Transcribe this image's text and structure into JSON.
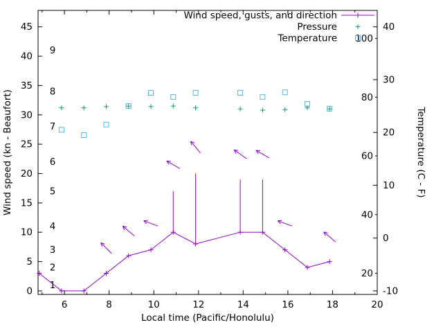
{
  "page": {
    "background": "#ffffff"
  },
  "legend": {
    "items": [
      {
        "label": "Wind speed, gusts, and direction",
        "series": "wind",
        "marker": "line-plus"
      },
      {
        "label": "Pressure",
        "series": "pressure",
        "marker": "plus"
      },
      {
        "label": "Temperature",
        "series": "temperature",
        "marker": "square"
      }
    ]
  },
  "chart_data": {
    "type": "line",
    "title": "",
    "xlabel": "Local time (Pacific/Honolulu)",
    "ylabel_left": "Wind speed (kn - Beaufort)",
    "ylabel_right": "Temperature (C - F)",
    "x_axis": {
      "lim": [
        4.82,
        20
      ],
      "major_ticks": [
        6,
        8,
        10,
        12,
        14,
        16,
        18,
        20
      ],
      "minor_ticks": [
        5,
        7,
        9,
        11,
        13,
        15,
        17,
        19
      ]
    },
    "y_left": {
      "lim": [
        -0.6,
        47.8
      ],
      "ticks": [
        0,
        5,
        10,
        15,
        20,
        25,
        30,
        35,
        40,
        45
      ],
      "beaufort_labels": [
        {
          "b": "1",
          "kn": 1
        },
        {
          "b": "2",
          "kn": 4
        },
        {
          "b": "3",
          "kn": 7
        },
        {
          "b": "4",
          "kn": 11
        },
        {
          "b": "5",
          "kn": 17
        },
        {
          "b": "6",
          "kn": 22
        },
        {
          "b": "7",
          "kn": 28
        },
        {
          "b": "8",
          "kn": 34
        },
        {
          "b": "9",
          "kn": 41
        }
      ]
    },
    "y_right": {
      "c_at_kn0": -10,
      "c_per_kn": 1.11111,
      "c_ticks": [
        -10,
        0,
        10,
        20,
        30,
        40
      ],
      "f_ticks": [
        {
          "f": "20",
          "c": -6.67
        },
        {
          "f": "40",
          "c": 4.44
        },
        {
          "f": "60",
          "c": 15.56
        },
        {
          "f": "80",
          "c": 26.67
        },
        {
          "f": "100",
          "c": 37.78
        }
      ]
    },
    "series": {
      "wind": {
        "color": "#9400d3",
        "x": [
          4.87,
          5.87,
          6.87,
          7.87,
          8.87,
          9.87,
          10.87,
          11.87,
          13.87,
          14.87,
          15.87,
          16.87,
          17.87
        ],
        "y": [
          3,
          0,
          0,
          3,
          6,
          7,
          10,
          8,
          10,
          10,
          7,
          4,
          5
        ],
        "gust": [
          null,
          null,
          null,
          null,
          null,
          null,
          17,
          20,
          19,
          19,
          null,
          null,
          null
        ],
        "arrows": [
          {
            "x": 7.87,
            "kn": 7.3,
            "angle": 135
          },
          {
            "x": 8.87,
            "kn": 10.2,
            "angle": 140
          },
          {
            "x": 9.87,
            "kn": 11.5,
            "angle": 160
          },
          {
            "x": 10.87,
            "kn": 21.5,
            "angle": 150
          },
          {
            "x": 11.87,
            "kn": 24.5,
            "angle": 130
          },
          {
            "x": 13.87,
            "kn": 23.3,
            "angle": 145
          },
          {
            "x": 14.87,
            "kn": 23.3,
            "angle": 150
          },
          {
            "x": 15.87,
            "kn": 11.5,
            "angle": 160
          },
          {
            "x": 17.87,
            "kn": 9.2,
            "angle": 140
          }
        ]
      },
      "pressure": {
        "color": "#009e73",
        "x": [
          5.87,
          6.87,
          7.87,
          8.87,
          9.87,
          10.87,
          11.87,
          13.87,
          14.87,
          15.87,
          16.87,
          17.87
        ],
        "y": [
          31.2,
          31.2,
          31.4,
          31.5,
          31.4,
          31.5,
          31.2,
          31.0,
          30.8,
          30.9,
          31.2,
          31.0
        ]
      },
      "temperature": {
        "color": "#56b4e9",
        "x": [
          5.87,
          6.87,
          7.87,
          8.87,
          9.87,
          10.87,
          11.87,
          13.87,
          14.87,
          15.87,
          16.87,
          17.87
        ],
        "c": [
          20.5,
          19.5,
          21.5,
          25.0,
          27.5,
          26.7,
          27.5,
          27.5,
          26.7,
          27.6,
          25.4,
          24.5
        ]
      }
    }
  }
}
